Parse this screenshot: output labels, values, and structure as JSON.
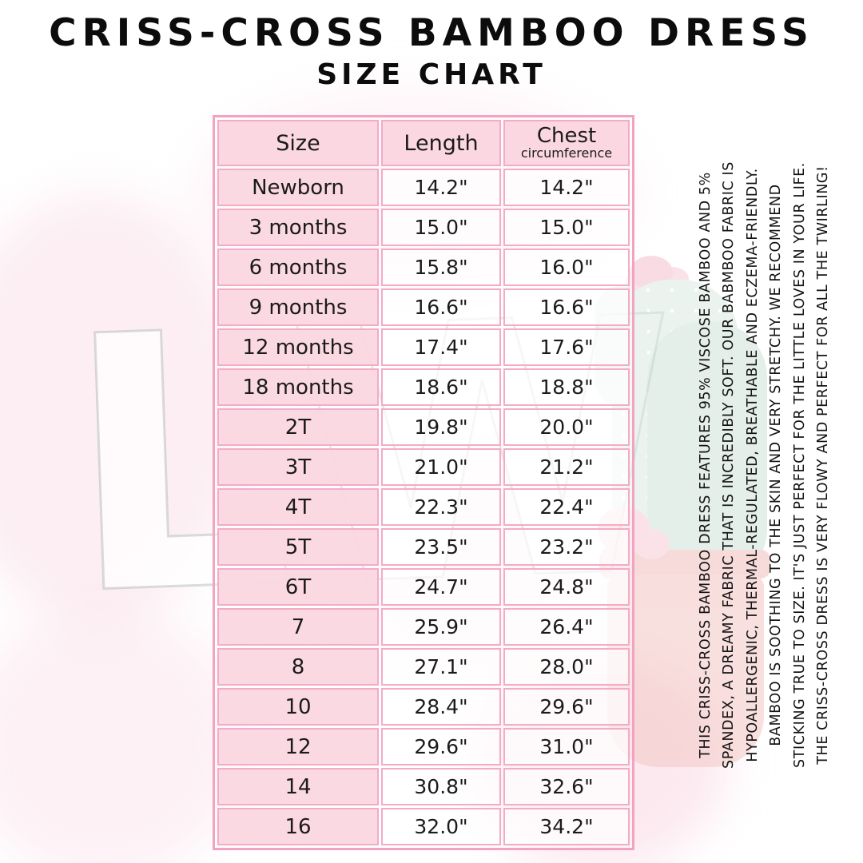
{
  "chart_data": {
    "type": "table",
    "title": "CRISS-CROSS BAMBOO DRESS",
    "subtitle": "SIZE CHART",
    "columns": [
      "Size",
      "Length",
      "Chest circumference"
    ],
    "rows": [
      [
        "Newborn",
        "14.2\"",
        "14.2\""
      ],
      [
        "3 months",
        "15.0\"",
        "15.0\""
      ],
      [
        "6 months",
        "15.8\"",
        "16.0\""
      ],
      [
        "9 months",
        "16.6\"",
        "16.6\""
      ],
      [
        "12 months",
        "17.4\"",
        "17.6\""
      ],
      [
        "18 months",
        "18.6\"",
        "18.8\""
      ],
      [
        "2T",
        "19.8\"",
        "20.0\""
      ],
      [
        "3T",
        "21.0\"",
        "21.2\""
      ],
      [
        "4T",
        "22.3\"",
        "22.4\""
      ],
      [
        "5T",
        "23.5\"",
        "23.2\""
      ],
      [
        "6T",
        "24.7\"",
        "24.8\""
      ],
      [
        "7",
        "25.9\"",
        "26.4\""
      ],
      [
        "8",
        "27.1\"",
        "28.0\""
      ],
      [
        "10",
        "28.4\"",
        "29.6\""
      ],
      [
        "12",
        "29.6\"",
        "31.0\""
      ],
      [
        "14",
        "30.8\"",
        "32.6\""
      ],
      [
        "16",
        "32.0\"",
        "34.2\""
      ]
    ]
  },
  "table_header": {
    "chest_main": "Chest",
    "chest_sub": "circumference"
  },
  "description": {
    "lines": [
      "THIS CRISS-CROSS BAMBOO DRESS FEATURES 95% VISCOSE BAMBOO AND 5%",
      "SPANDEX, A DREAMY FABRIC THAT IS INCREDIBLY SOFT. OUR BABMBOO FABRIC IS",
      "HYPOALLERGENIC, THERMAL-REGULATED, BREATHABLE AND ECZEMA-FRIENDLY.",
      "BAMBOO IS SOOTHING TO THE SKIN AND VERY STRETCHY. WE RECOMMEND",
      "STICKING TRUE TO SIZE. IT'S JUST PERFECT FOR THE LITTLE LOVES IN YOUR LIFE.",
      "THE CRISS-CROSS DRESS IS VERY FLOWY AND PERFECT FOR ALL THE TWIRLING!"
    ]
  },
  "watermark": {
    "letters": "LW"
  },
  "colors": {
    "table_border": "#f2a3c0",
    "cell_pink": "#fbd7e2",
    "text": "#111111",
    "cactus_green": "#dcebe3",
    "pot_pink": "#f3c6c3",
    "flower_pink": "#f8ccd7"
  }
}
